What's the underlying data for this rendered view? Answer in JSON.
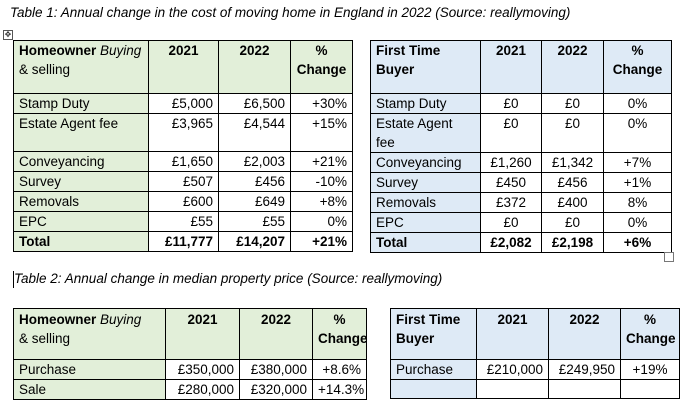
{
  "captions": {
    "table1": "Table 1: Annual change in the cost of moving home in England in 2022 (Source: reallymoving)",
    "table2": "Table 2: Annual change in median property price (Source: reallymoving)"
  },
  "headers": {
    "homeowner_bold": "Homeowner ",
    "homeowner_italic": "Buying",
    "homeowner_line2": "& selling",
    "first_time_line1": "First Time",
    "first_time_line2": "Buyer",
    "y2021": "2021",
    "y2022": "2022",
    "pct": "%",
    "change": "Change"
  },
  "table1_homeowner": [
    {
      "label": "Stamp Duty",
      "v2021": "£5,000",
      "v2022": "£6,500",
      "change": "+30%"
    },
    {
      "label": "Estate Agent fee",
      "v2021": "£3,965",
      "v2022": "£4,544",
      "change": "+15%"
    },
    {
      "label": "Conveyancing",
      "v2021": "£1,650",
      "v2022": "£2,003",
      "change": "+21%"
    },
    {
      "label": "Survey",
      "v2021": "£507",
      "v2022": "£456",
      "change": "-10%"
    },
    {
      "label": "Removals",
      "v2021": "£600",
      "v2022": "£649",
      "change": "+8%"
    },
    {
      "label": "EPC",
      "v2021": "£55",
      "v2022": "£55",
      "change": "0%"
    },
    {
      "label": "Total",
      "v2021": "£11,777",
      "v2022": "£14,207",
      "change": "+21%"
    }
  ],
  "table1_first_time": [
    {
      "label": "Stamp Duty",
      "v2021": "£0",
      "v2022": "£0",
      "change": "0%"
    },
    {
      "label": "Estate Agent fee",
      "v2021": "£0",
      "v2022": "£0",
      "change": "0%"
    },
    {
      "label": "Conveyancing",
      "v2021": "£1,260",
      "v2022": "£1,342",
      "change": "+7%"
    },
    {
      "label": "Survey",
      "v2021": "£450",
      "v2022": "£456",
      "change": "+1%"
    },
    {
      "label": "Removals",
      "v2021": "£372",
      "v2022": "£400",
      "change": "8%"
    },
    {
      "label": "EPC",
      "v2021": "£0",
      "v2022": "£0",
      "change": "0%"
    },
    {
      "label": "Total",
      "v2021": "£2,082",
      "v2022": "£2,198",
      "change": "+6%"
    }
  ],
  "table2_homeowner": [
    {
      "label": "Purchase",
      "v2021": "£350,000",
      "v2022": "£380,000",
      "change": "+8.6%"
    },
    {
      "label": "Sale",
      "v2021": "£280,000",
      "v2022": "£320,000",
      "change": "+14.3%"
    }
  ],
  "table2_first_time": [
    {
      "label": "Purchase",
      "v2021": "£210,000",
      "v2022": "£249,950",
      "change": "+19%"
    },
    {
      "label": "",
      "v2021": "",
      "v2022": "",
      "change": ""
    }
  ],
  "icons": {
    "move_handle": "move-icon",
    "resize_handle": "resize-icon"
  }
}
